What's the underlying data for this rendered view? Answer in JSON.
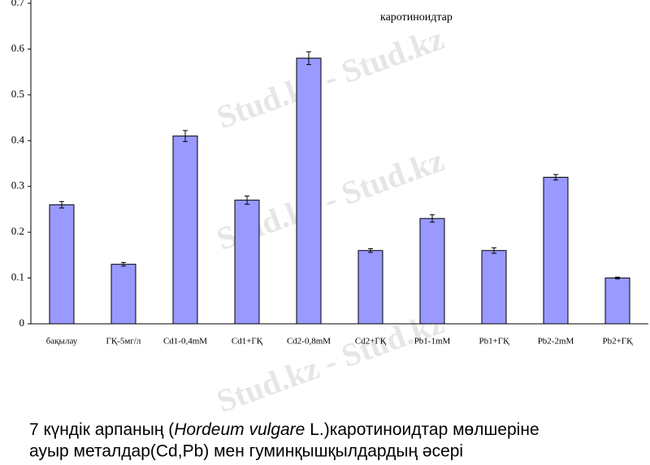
{
  "chart_data": {
    "type": "bar",
    "title": "каротиноидтар",
    "categories": [
      "бақылау",
      "ГҚ-5мг/л",
      "Cd1-0,4mM",
      "Cd1+ГҚ",
      "Cd2-0,8mM",
      "Cd2+ГҚ",
      "Pb1-1mM",
      "Pb1+ГҚ",
      "Pb2-2mM",
      "Pb2+ГҚ"
    ],
    "values": [
      0.26,
      0.13,
      0.41,
      0.27,
      0.58,
      0.16,
      0.23,
      0.16,
      0.32,
      0.1
    ],
    "errors": [
      0.007,
      0.004,
      0.012,
      0.009,
      0.014,
      0.004,
      0.008,
      0.006,
      0.006,
      0.002
    ],
    "color": "#9999ff",
    "ylim": [
      0,
      0.7
    ],
    "yticks": [
      0,
      0.1,
      0.2,
      0.3,
      0.4,
      0.5,
      0.6,
      0.7
    ],
    "grid": false
  },
  "caption": {
    "line1": [
      "7 күндік арпаның (",
      "Hordeum vulgare",
      " L.)каротиноидтар мөлшеріне"
    ],
    "line2": "ауыр металдар(Cd,Pb) мен гуминқышқылдардың әсері"
  },
  "watermark": "Stud.kz - Stud.kz"
}
